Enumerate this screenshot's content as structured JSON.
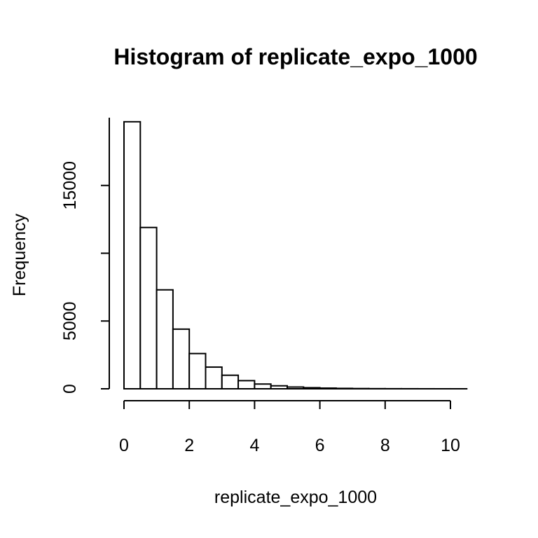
{
  "chart_data": {
    "type": "bar",
    "title": "Histogram of replicate_expo_1000",
    "xlabel": "replicate_expo_1000",
    "ylabel": "Frequency",
    "bin_width": 0.5,
    "bins": [
      {
        "start": 0.0,
        "end": 0.5,
        "count": 19700
      },
      {
        "start": 0.5,
        "end": 1.0,
        "count": 11900
      },
      {
        "start": 1.0,
        "end": 1.5,
        "count": 7300
      },
      {
        "start": 1.5,
        "end": 2.0,
        "count": 4400
      },
      {
        "start": 2.0,
        "end": 2.5,
        "count": 2600
      },
      {
        "start": 2.5,
        "end": 3.0,
        "count": 1600
      },
      {
        "start": 3.0,
        "end": 3.5,
        "count": 1000
      },
      {
        "start": 3.5,
        "end": 4.0,
        "count": 600
      },
      {
        "start": 4.0,
        "end": 4.5,
        "count": 350
      },
      {
        "start": 4.5,
        "end": 5.0,
        "count": 220
      },
      {
        "start": 5.0,
        "end": 5.5,
        "count": 130
      },
      {
        "start": 5.5,
        "end": 6.0,
        "count": 80
      },
      {
        "start": 6.0,
        "end": 6.5,
        "count": 50
      },
      {
        "start": 6.5,
        "end": 7.0,
        "count": 30
      },
      {
        "start": 7.0,
        "end": 7.5,
        "count": 18
      },
      {
        "start": 7.5,
        "end": 8.0,
        "count": 10
      },
      {
        "start": 8.0,
        "end": 8.5,
        "count": 6
      },
      {
        "start": 8.5,
        "end": 9.0,
        "count": 4
      },
      {
        "start": 9.0,
        "end": 9.5,
        "count": 2
      },
      {
        "start": 9.5,
        "end": 10.0,
        "count": 1
      },
      {
        "start": 10.0,
        "end": 10.5,
        "count": 1
      }
    ],
    "xlim": [
      0,
      10.5
    ],
    "ylim": [
      0,
      20000
    ],
    "x_ticks": [
      0,
      2,
      4,
      6,
      8,
      10
    ],
    "y_ticks": [
      0,
      5000,
      10000,
      15000
    ],
    "y_tick_labels": [
      "0",
      "5000",
      "",
      "15000"
    ],
    "grid": false,
    "legend": "none"
  }
}
